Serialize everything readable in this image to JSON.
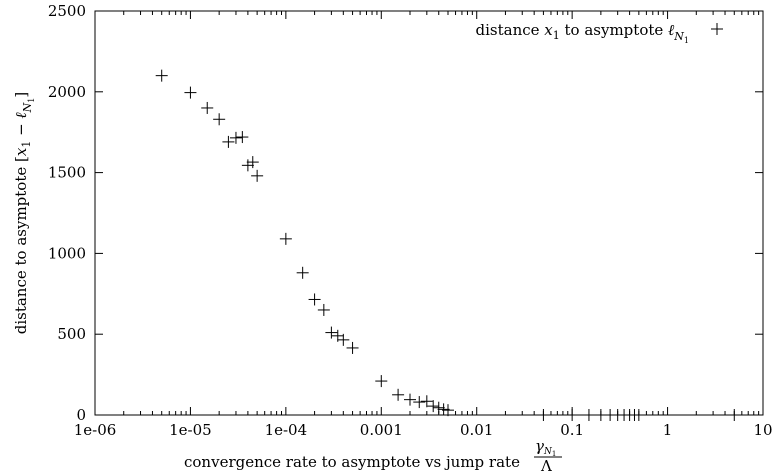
{
  "chart_data": {
    "type": "scatter",
    "xscale": "log",
    "xlim": [
      1e-06,
      10
    ],
    "ylim": [
      0,
      2500
    ],
    "x_ticks": [
      1e-06,
      1e-05,
      0.0001,
      0.001,
      0.01,
      0.1,
      1,
      10
    ],
    "x_tick_labels": [
      "1e-06",
      "1e-05",
      "1e-04",
      "0.001",
      "0.01",
      "0.1",
      "1",
      "10"
    ],
    "y_ticks": [
      0,
      500,
      1000,
      1500,
      2000,
      2500
    ],
    "y_tick_labels": [
      "0",
      "500",
      "1000",
      "1500",
      "2000",
      "2500"
    ],
    "xlabel": "convergence rate to asymptote vs jump rate γN1/Λ",
    "ylabel": "distance to asymptote [x1 − ℓN1]",
    "legend_position": "top-right",
    "grid": false,
    "series": [
      {
        "name": "distance x1 to asymptote ℓN1",
        "marker": "+",
        "color": "#000000",
        "points": [
          [
            5e-06,
            2100
          ],
          [
            1e-05,
            1995
          ],
          [
            1.5e-05,
            1900
          ],
          [
            2e-05,
            1830
          ],
          [
            2.5e-05,
            1690
          ],
          [
            3e-05,
            1715
          ],
          [
            3.5e-05,
            1720
          ],
          [
            4e-05,
            1545
          ],
          [
            4.5e-05,
            1565
          ],
          [
            5e-05,
            1480
          ],
          [
            0.0001,
            1090
          ],
          [
            0.00015,
            880
          ],
          [
            0.0002,
            715
          ],
          [
            0.00025,
            650
          ],
          [
            0.0003,
            510
          ],
          [
            0.00035,
            490
          ],
          [
            0.0004,
            465
          ],
          [
            0.0005,
            415
          ],
          [
            0.001,
            210
          ],
          [
            0.0015,
            125
          ],
          [
            0.002,
            95
          ],
          [
            0.0025,
            80
          ],
          [
            0.003,
            85
          ],
          [
            0.0035,
            55
          ],
          [
            0.004,
            45
          ],
          [
            0.0045,
            35
          ],
          [
            0.005,
            30
          ],
          [
            0.05,
            0
          ],
          [
            0.1,
            0
          ],
          [
            0.15,
            0
          ],
          [
            0.2,
            0
          ],
          [
            0.25,
            0
          ],
          [
            0.3,
            0
          ],
          [
            0.35,
            0
          ],
          [
            0.4,
            0
          ],
          [
            0.45,
            0
          ],
          [
            0.5,
            0
          ],
          [
            5,
            0
          ]
        ]
      }
    ]
  }
}
